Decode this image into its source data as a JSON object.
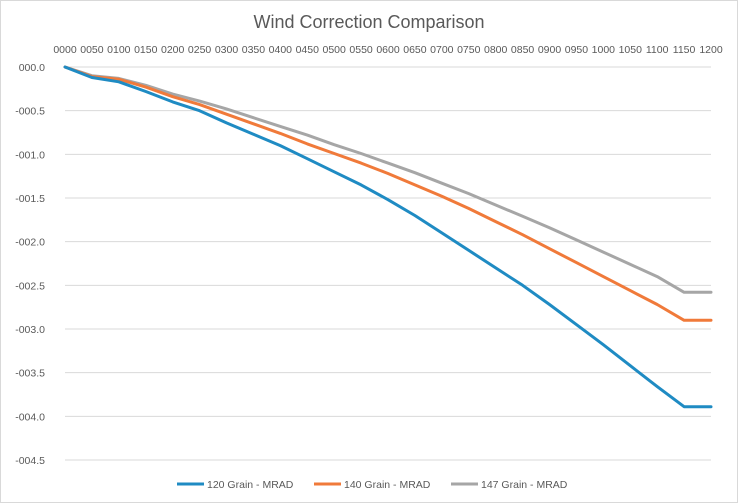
{
  "chart_data": {
    "type": "line",
    "title": "Wind Correction Comparison",
    "xlabel": "",
    "ylabel": "",
    "x_axis_position": "top",
    "categories": [
      "0000",
      "0050",
      "0100",
      "0150",
      "0200",
      "0250",
      "0300",
      "0350",
      "0400",
      "0450",
      "0500",
      "0550",
      "0600",
      "0650",
      "0700",
      "0750",
      "0800",
      "0850",
      "0900",
      "0950",
      "1000",
      "1050",
      "1100",
      "1150",
      "1200"
    ],
    "ylim": [
      -4.5,
      0.0
    ],
    "y_tick_values": [
      0.0,
      -0.5,
      -1.0,
      -1.5,
      -2.0,
      -2.5,
      -3.0,
      -3.5,
      -4.0,
      -4.5
    ],
    "y_tick_labels": [
      "000.0",
      "-000.5",
      "-001.0",
      "-001.5",
      "-002.0",
      "-002.5",
      "-003.0",
      "-003.5",
      "-004.0",
      "-004.5"
    ],
    "grid": true,
    "legend_position": "bottom",
    "series": [
      {
        "name": "120 Grain - MRAD",
        "color": "#1F8BC3",
        "values": [
          0.0,
          -0.12,
          -0.17,
          -0.28,
          -0.4,
          -0.5,
          -0.64,
          -0.77,
          -0.9,
          -1.05,
          -1.2,
          -1.35,
          -1.52,
          -1.7,
          -1.9,
          -2.1,
          -2.3,
          -2.5,
          -2.72,
          -2.95,
          -3.18,
          -3.42,
          -3.66,
          -3.89,
          -3.89
        ]
      },
      {
        "name": "140 Grain - MRAD",
        "color": "#F07A3A",
        "values": [
          0.0,
          -0.11,
          -0.14,
          -0.23,
          -0.34,
          -0.43,
          -0.54,
          -0.65,
          -0.76,
          -0.88,
          -0.99,
          -1.1,
          -1.22,
          -1.35,
          -1.48,
          -1.62,
          -1.77,
          -1.92,
          -2.08,
          -2.24,
          -2.4,
          -2.56,
          -2.72,
          -2.9,
          -2.9
        ]
      },
      {
        "name": "147 Grain - MRAD",
        "color": "#A6A6A6",
        "values": [
          0.0,
          -0.1,
          -0.13,
          -0.21,
          -0.31,
          -0.39,
          -0.48,
          -0.58,
          -0.68,
          -0.78,
          -0.89,
          -0.99,
          -1.1,
          -1.21,
          -1.33,
          -1.45,
          -1.58,
          -1.71,
          -1.84,
          -1.98,
          -2.12,
          -2.26,
          -2.4,
          -2.58,
          -2.58
        ]
      }
    ]
  }
}
